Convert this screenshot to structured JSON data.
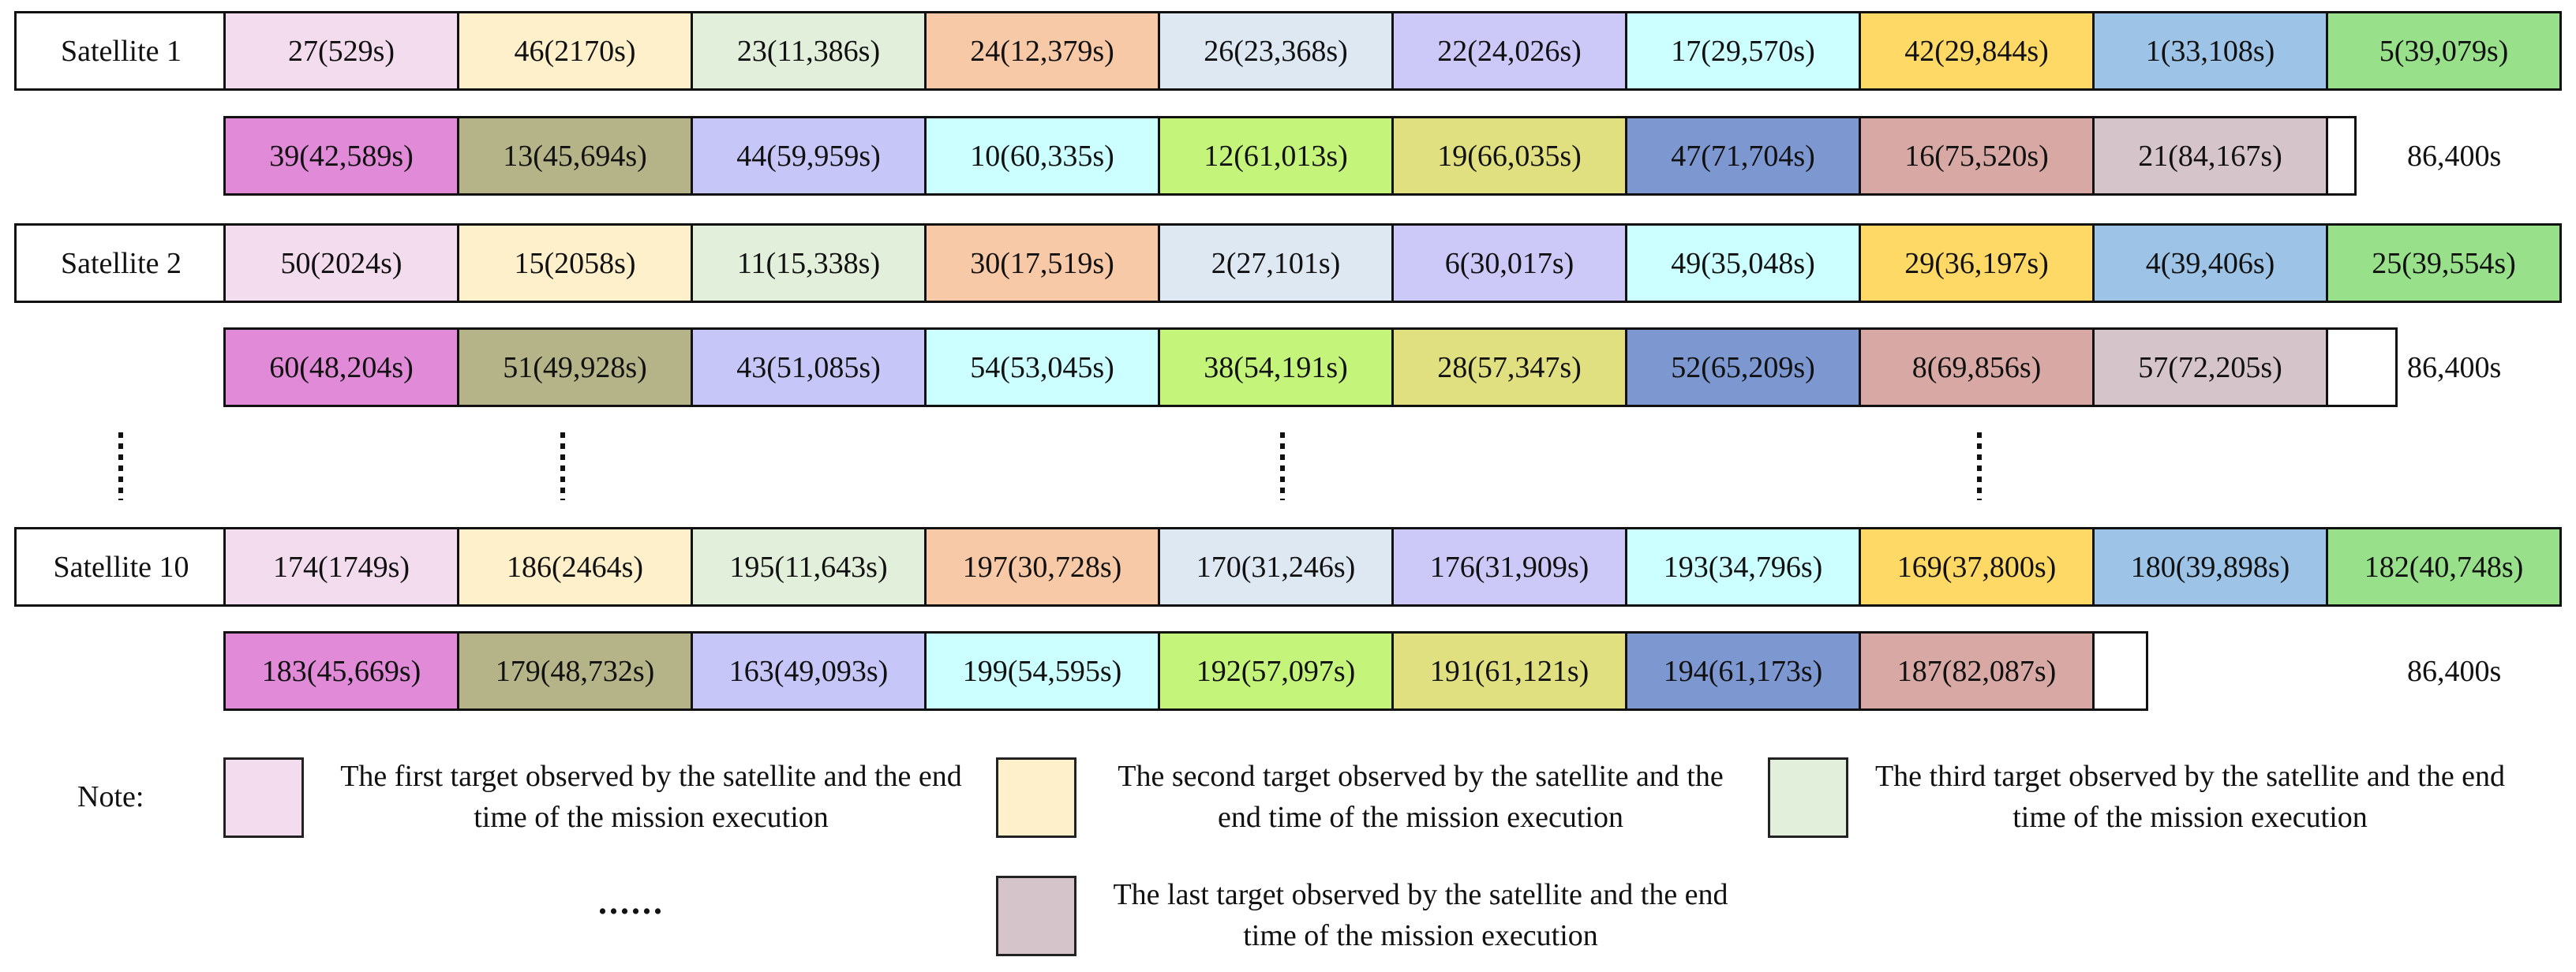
{
  "end_time": "86,400s",
  "satellites": [
    {
      "label": "Satellite 1",
      "row1": [
        "27(529s)",
        "46(2170s)",
        "23(11,386s)",
        "24(12,379s)",
        "26(23,368s)",
        "22(24,026s)",
        "17(29,570s)",
        "42(29,844s)",
        "1(33,108s)",
        "5(39,079s)"
      ],
      "row2": [
        "39(42,589s)",
        "13(45,694s)",
        "44(59,959s)",
        "10(60,335s)",
        "12(61,013s)",
        "19(66,035s)",
        "47(71,704s)",
        "16(75,520s)",
        "21(84,167s)"
      ]
    },
    {
      "label": "Satellite 2",
      "row1": [
        "50(2024s)",
        "15(2058s)",
        "11(15,338s)",
        "30(17,519s)",
        "2(27,101s)",
        "6(30,017s)",
        "49(35,048s)",
        "29(36,197s)",
        "4(39,406s)",
        "25(39,554s)"
      ],
      "row2": [
        "60(48,204s)",
        "51(49,928s)",
        "43(51,085s)",
        "54(53,045s)",
        "38(54,191s)",
        "28(57,347s)",
        "52(65,209s)",
        "8(69,856s)",
        "57(72,205s)"
      ]
    },
    {
      "label": "Satellite 10",
      "row1": [
        "174(1749s)",
        "186(2464s)",
        "195(11,643s)",
        "197(30,728s)",
        "170(31,246s)",
        "176(31,909s)",
        "193(34,796s)",
        "169(37,800s)",
        "180(39,898s)",
        "182(40,748s)"
      ],
      "row2": [
        "183(45,669s)",
        "179(48,732s)",
        "163(49,093s)",
        "199(54,595s)",
        "192(57,097s)",
        "191(61,121s)",
        "194(61,173s)",
        "187(82,087s)"
      ]
    }
  ],
  "colors": {
    "row1": [
      "#f2dcee",
      "#fff0cc",
      "#e2efda",
      "#f8c9a6",
      "#dde8f3",
      "#ccc8f8",
      "#ccffff",
      "#ffd965",
      "#9dc3e6",
      "#98e08a"
    ],
    "row2": [
      "#e08ad8",
      "#b5b488",
      "#c7c6f8",
      "#ccffff",
      "#c5f47a",
      "#e0e080",
      "#7d97d1",
      "#d8a9a4",
      "#d6c4cb"
    ]
  },
  "legend": {
    "note_label": "Note:",
    "items": [
      {
        "text": "The first target observed by the satellite and the end time of the mission execution",
        "color": "#f2dcee"
      },
      {
        "text": "The second target observed by the satellite and the end time of the mission execution",
        "color": "#fff0cc"
      },
      {
        "text": "The third target observed by the satellite and the end time of the mission execution",
        "color": "#e2efda"
      },
      {
        "text": "The last target observed by the satellite and the end time of the mission execution",
        "color": "#d6c4cb"
      }
    ],
    "ellipsis": "......"
  }
}
